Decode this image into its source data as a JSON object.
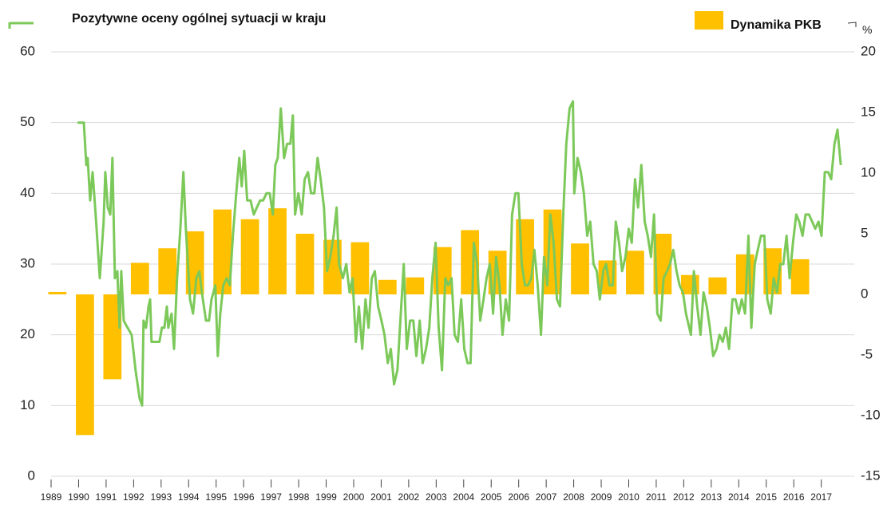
{
  "chart_data": {
    "type": "bar_line",
    "categories": [
      "1989",
      "1990",
      "1991",
      "1992",
      "1993",
      "1994",
      "1995",
      "1996",
      "1997",
      "1998",
      "1999",
      "2000",
      "2001",
      "2002",
      "2003",
      "2004",
      "2005",
      "2006",
      "2007",
      "2008",
      "2009",
      "2010",
      "2011",
      "2012",
      "2013",
      "2014",
      "2015",
      "2016",
      "2017"
    ],
    "xlim": [
      1989,
      2018.2
    ],
    "ylim": [
      0,
      60
    ],
    "yticks": [
      0,
      10,
      20,
      30,
      40,
      50,
      60
    ],
    "y2lim": [
      -15,
      20
    ],
    "y2ticks": [
      -15,
      -10,
      -5,
      0,
      5,
      10,
      15,
      20
    ],
    "y2_label": "%",
    "grid": true,
    "series": [
      {
        "name": "Pozytywne oceny ogólnej sytuacji w kraju",
        "type": "line",
        "color": "#7cc95a",
        "x": [
          1989.96,
          1990.19,
          1990.28,
          1990.33,
          1990.42,
          1990.51,
          1990.62,
          1990.77,
          1990.91,
          1990.97,
          1991.06,
          1991.15,
          1991.23,
          1991.32,
          1991.41,
          1991.49,
          1991.55,
          1991.64,
          1991.78,
          1991.93,
          1992.07,
          1992.22,
          1992.31,
          1992.36,
          1992.45,
          1992.54,
          1992.6,
          1992.65,
          1992.8,
          1992.94,
          1993.03,
          1993.12,
          1993.21,
          1993.26,
          1993.38,
          1993.47,
          1993.58,
          1993.7,
          1993.81,
          1993.9,
          1994.05,
          1994.16,
          1994.28,
          1994.39,
          1994.48,
          1994.63,
          1994.74,
          1994.83,
          1994.97,
          1995.06,
          1995.15,
          1995.26,
          1995.38,
          1995.5,
          1995.61,
          1995.73,
          1995.84,
          1995.93,
          1996.02,
          1996.13,
          1996.25,
          1996.37,
          1996.48,
          1996.6,
          1996.71,
          1996.83,
          1996.95,
          1997.06,
          1997.15,
          1997.24,
          1997.35,
          1997.47,
          1997.58,
          1997.7,
          1997.79,
          1997.87,
          1997.99,
          1998.11,
          1998.22,
          1998.34,
          1998.45,
          1998.57,
          1998.69,
          1998.8,
          1998.92,
          1999.03,
          1999.15,
          1999.27,
          1999.38,
          1999.47,
          1999.61,
          1999.73,
          1999.85,
          1999.96,
          2000.08,
          2000.19,
          2000.31,
          2000.43,
          2000.54,
          2000.66,
          2000.77,
          2000.89,
          2001.01,
          2001.12,
          2001.24,
          2001.35,
          2001.47,
          2001.59,
          2001.7,
          2001.82,
          2001.93,
          2002.05,
          2002.17,
          2002.28,
          2002.4,
          2002.51,
          2002.63,
          2002.75,
          2002.86,
          2002.98,
          2003.09,
          2003.21,
          2003.33,
          2003.44,
          2003.56,
          2003.67,
          2003.79,
          2003.91,
          2004.02,
          2004.14,
          2004.25,
          2004.37,
          2004.49,
          2004.6,
          2004.72,
          2004.83,
          2004.95,
          2005.07,
          2005.18,
          2005.3,
          2005.41,
          2005.53,
          2005.65,
          2005.76,
          2005.88,
          2005.99,
          2006.11,
          2006.23,
          2006.34,
          2006.46,
          2006.57,
          2006.69,
          2006.81,
          2006.92,
          2007.04,
          2007.15,
          2007.27,
          2007.39,
          2007.5,
          2007.62,
          2007.73,
          2007.85,
          2007.97,
          2008.02,
          2008.14,
          2008.26,
          2008.37,
          2008.49,
          2008.6,
          2008.72,
          2008.84,
          2008.95,
          2009.07,
          2009.18,
          2009.3,
          2009.42,
          2009.53,
          2009.65,
          2009.76,
          2009.88,
          2010.0,
          2010.11,
          2010.23,
          2010.34,
          2010.46,
          2010.58,
          2010.69,
          2010.81,
          2010.92,
          2011.04,
          2011.16,
          2011.27,
          2011.39,
          2011.5,
          2011.62,
          2011.74,
          2011.85,
          2011.97,
          2012.08,
          2012.26,
          2012.37,
          2012.49,
          2012.61,
          2012.72,
          2012.84,
          2012.95,
          2013.07,
          2013.19,
          2013.3,
          2013.42,
          2013.53,
          2013.65,
          2013.77,
          2013.88,
          2014.0,
          2014.11,
          2014.23,
          2014.35,
          2014.46,
          2014.58,
          2014.69,
          2014.81,
          2014.93,
          2015.04,
          2015.16,
          2015.27,
          2015.39,
          2015.51,
          2015.62,
          2015.74,
          2015.85,
          2015.97,
          2016.09,
          2016.2,
          2016.32,
          2016.43,
          2016.55,
          2016.67,
          2016.78,
          2016.9,
          2017.01,
          2017.13,
          2017.25,
          2017.36,
          2017.48,
          2017.59,
          2017.71
        ],
        "values": [
          50,
          50,
          44,
          45,
          39,
          43,
          37,
          28,
          36,
          43,
          38,
          37,
          45,
          28,
          29,
          21,
          29,
          22,
          21,
          20,
          15,
          11,
          10,
          22,
          21,
          24,
          25,
          19,
          19,
          19,
          21,
          21,
          24,
          21,
          23,
          18,
          28,
          35,
          43,
          35,
          25,
          23,
          28,
          29,
          26,
          22,
          22,
          25,
          27,
          17,
          23,
          27,
          28,
          27,
          34,
          40,
          45,
          41,
          46,
          39,
          39,
          37,
          38,
          39,
          39,
          40,
          40,
          37,
          44,
          45,
          52,
          45,
          47,
          47,
          51,
          37,
          40,
          37,
          42,
          43,
          40,
          40,
          45,
          42,
          38,
          29,
          31,
          34,
          38,
          30,
          28,
          30,
          26,
          28,
          19,
          24,
          18,
          25,
          21,
          28,
          29,
          24,
          22,
          20,
          16,
          18,
          13,
          15,
          22,
          30,
          18,
          22,
          22,
          17,
          22,
          16,
          18,
          21,
          28,
          33,
          21,
          15,
          28,
          27,
          28,
          20,
          19,
          25,
          18,
          16,
          16,
          33,
          30,
          22,
          25,
          28,
          30,
          23,
          31,
          27,
          20,
          25,
          22,
          37,
          40,
          40,
          30,
          27,
          27,
          28,
          32,
          27,
          20,
          31,
          27,
          37,
          33,
          25,
          24,
          37,
          47,
          52,
          53,
          40,
          45,
          43,
          40,
          34,
          36,
          30,
          29,
          25,
          29,
          30,
          27,
          27,
          36,
          33,
          29,
          31,
          35,
          33,
          42,
          38,
          44,
          36,
          34,
          31,
          37,
          23,
          22,
          28,
          29,
          30,
          32,
          29,
          27,
          26,
          23,
          20,
          29,
          24,
          20,
          26,
          24,
          21,
          17,
          18,
          20,
          19,
          21,
          18,
          25,
          25,
          23,
          25,
          23,
          34,
          21,
          30,
          32,
          34,
          34,
          25,
          23,
          28,
          26,
          30,
          30,
          34,
          28,
          33,
          37,
          36,
          34,
          37,
          37,
          36,
          35,
          36,
          34,
          43,
          43,
          42,
          47,
          49,
          44
        ]
      },
      {
        "name": "Dynamika PKB",
        "type": "bar",
        "axis": "y2",
        "color": "#ffc000",
        "values": [
          0.2,
          -11.6,
          -7.0,
          2.6,
          3.8,
          5.2,
          7.0,
          6.2,
          7.1,
          5.0,
          4.5,
          4.3,
          1.2,
          1.4,
          3.9,
          5.3,
          3.6,
          6.2,
          7.0,
          4.2,
          2.8,
          3.6,
          5.0,
          1.6,
          1.4,
          3.3,
          3.8,
          2.9,
          null
        ]
      }
    ]
  }
}
